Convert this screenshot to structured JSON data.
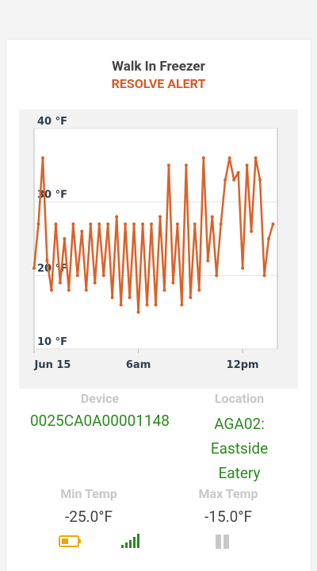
{
  "header": {
    "title": "Walk In Freezer",
    "alert": "RESOLVE ALERT"
  },
  "chart_data": {
    "type": "line",
    "color": "#d9622b",
    "x": [
      0,
      0.25,
      0.5,
      0.75,
      1,
      1.25,
      1.5,
      1.75,
      2,
      2.25,
      2.5,
      2.75,
      3,
      3.25,
      3.5,
      3.75,
      4,
      4.25,
      4.5,
      4.75,
      5,
      5.25,
      5.5,
      5.75,
      6,
      6.25,
      6.5,
      6.75,
      7,
      7.25,
      7.5,
      7.75,
      8,
      8.25,
      8.5,
      8.75,
      9,
      9.25,
      9.5,
      9.75,
      10,
      10.25,
      10.5,
      10.75,
      11,
      11.25,
      11.5,
      11.75,
      12,
      12.25,
      12.5,
      12.75,
      13,
      13.25,
      13.5,
      13.75
    ],
    "values": [
      21,
      27,
      36,
      22,
      18,
      27,
      19,
      25,
      18,
      27,
      20,
      26,
      18,
      27,
      19,
      27,
      20,
      27,
      17,
      28,
      16,
      27,
      17,
      27,
      15,
      27,
      16,
      27,
      16,
      28,
      18,
      35,
      19,
      27,
      16,
      35,
      17,
      27,
      18,
      36,
      22,
      28,
      20,
      27,
      33,
      36,
      33,
      34,
      21,
      35,
      26,
      36,
      33,
      20,
      25,
      27
    ],
    "xlim": [
      0,
      14
    ],
    "xticks": [
      {
        "value": 0,
        "label": "Jun 15"
      },
      {
        "value": 6,
        "label": "6am"
      },
      {
        "value": 12,
        "label": "12pm"
      }
    ],
    "ylim": [
      10,
      40
    ],
    "yticks": [
      {
        "value": 10,
        "label": "10 °F"
      },
      {
        "value": 20,
        "label": "20 °F"
      },
      {
        "value": 30,
        "label": "30 °F"
      },
      {
        "value": 40,
        "label": "40 °F"
      }
    ],
    "grid": true
  },
  "device": {
    "label": "Device",
    "value": "0025CA0A00001148"
  },
  "location": {
    "label": "Location",
    "value": "AGA02: Eastside Eatery"
  },
  "min_temp": {
    "label": "Min Temp",
    "value": "-25.0°F"
  },
  "max_temp": {
    "label": "Max Temp",
    "value": "-15.0°F"
  }
}
